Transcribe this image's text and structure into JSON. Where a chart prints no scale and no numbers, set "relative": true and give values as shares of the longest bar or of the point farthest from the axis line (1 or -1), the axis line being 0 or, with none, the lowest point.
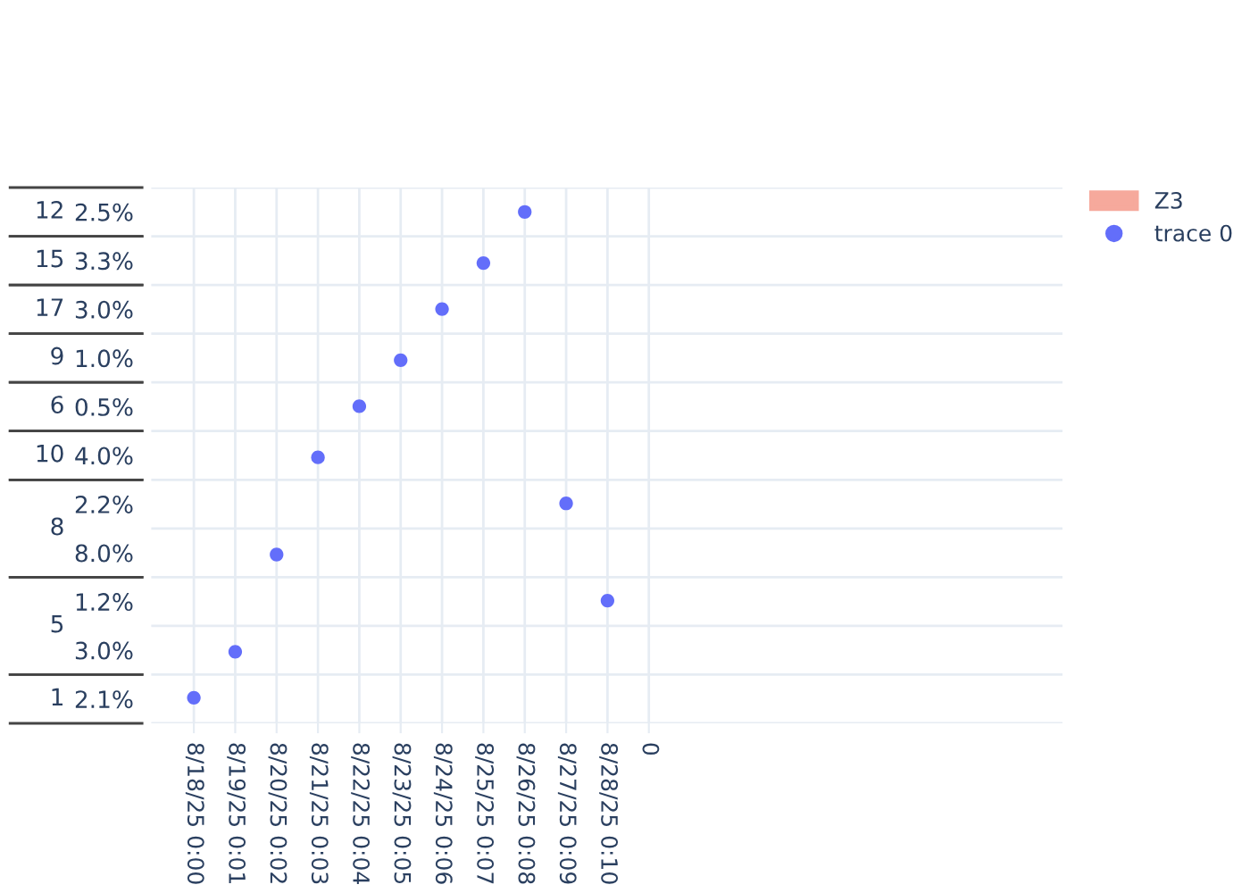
{
  "chart_data": {
    "type": "scatter",
    "categories": [
      "8/18/25 0:00",
      "8/19/25 0:01",
      "8/20/25 0:02",
      "8/21/25 0:03",
      "8/22/25 0:04",
      "8/23/25 0:05",
      "8/24/25 0:06",
      "8/25/25 0:07",
      "8/26/25 0:08",
      "8/27/25 0:09",
      "8/28/25 0:10",
      "0"
    ],
    "y_categories": [
      "2.5%",
      "3.3%",
      "3.0%",
      "1.0%",
      "0.5%",
      "4.0%",
      "2.2%",
      "8.0%",
      "1.2%",
      "3.0%",
      "2.1%"
    ],
    "y2_categories": [
      "12",
      "15",
      "17",
      "9",
      "6",
      "10",
      "8",
      null,
      "5",
      null,
      "1"
    ],
    "series": [
      {
        "name": "Z3",
        "type": "area",
        "color": "#ef553b",
        "values": [
          null,
          null,
          null,
          null,
          null,
          null,
          null,
          null,
          null,
          null,
          null,
          null
        ]
      },
      {
        "name": "trace 0",
        "color": "#636efa",
        "values": [
          0.05,
          0.14,
          0.33,
          0.52,
          0.62,
          0.71,
          0.81,
          0.9,
          1,
          0.43,
          0.24,
          null
        ]
      }
    ],
    "relative": true,
    "marker": "circle",
    "grid": true,
    "legend": "top right"
  }
}
